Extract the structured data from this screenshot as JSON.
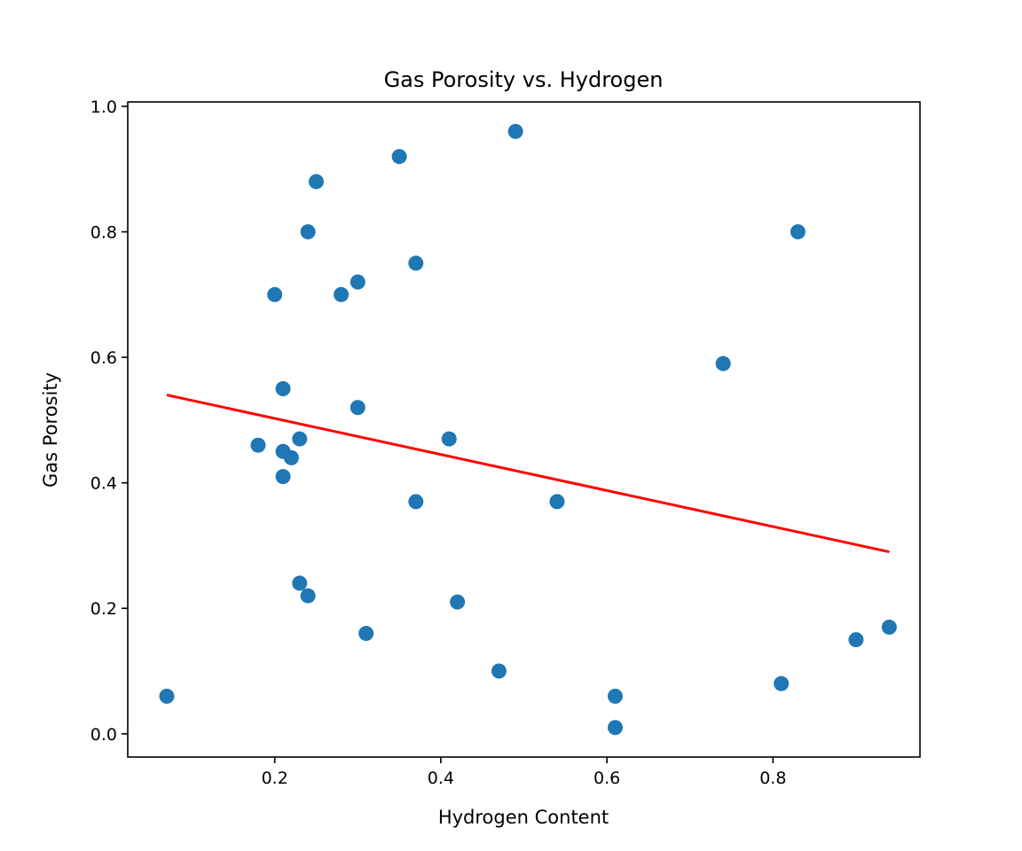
{
  "chart_data": {
    "type": "scatter",
    "title": "Gas Porosity vs. Hydrogen",
    "xlabel": "Hydrogen Content",
    "ylabel": "Gas Porosity",
    "xlim": [
      0.023,
      0.977
    ],
    "ylim": [
      -0.037,
      1.007
    ],
    "x_ticks": [
      0.2,
      0.4,
      0.6,
      0.8
    ],
    "x_tick_labels": [
      "0.2",
      "0.4",
      "0.6",
      "0.8"
    ],
    "y_ticks": [
      0.0,
      0.2,
      0.4,
      0.6,
      0.8,
      1.0
    ],
    "y_tick_labels": [
      "0.0",
      "0.2",
      "0.4",
      "0.6",
      "0.8",
      "1.0"
    ],
    "grid": false,
    "series": [
      {
        "type": "scatter",
        "color": "#1f77b4",
        "points": [
          {
            "x": 0.07,
            "y": 0.06
          },
          {
            "x": 0.18,
            "y": 0.46
          },
          {
            "x": 0.2,
            "y": 0.7
          },
          {
            "x": 0.21,
            "y": 0.55
          },
          {
            "x": 0.21,
            "y": 0.45
          },
          {
            "x": 0.21,
            "y": 0.41
          },
          {
            "x": 0.22,
            "y": 0.44
          },
          {
            "x": 0.23,
            "y": 0.47
          },
          {
            "x": 0.23,
            "y": 0.24
          },
          {
            "x": 0.24,
            "y": 0.8
          },
          {
            "x": 0.24,
            "y": 0.22
          },
          {
            "x": 0.25,
            "y": 0.88
          },
          {
            "x": 0.28,
            "y": 0.7
          },
          {
            "x": 0.3,
            "y": 0.72
          },
          {
            "x": 0.3,
            "y": 0.52
          },
          {
            "x": 0.31,
            "y": 0.16
          },
          {
            "x": 0.35,
            "y": 0.92
          },
          {
            "x": 0.37,
            "y": 0.75
          },
          {
            "x": 0.37,
            "y": 0.37
          },
          {
            "x": 0.41,
            "y": 0.47
          },
          {
            "x": 0.42,
            "y": 0.21
          },
          {
            "x": 0.47,
            "y": 0.1
          },
          {
            "x": 0.49,
            "y": 0.96
          },
          {
            "x": 0.54,
            "y": 0.37
          },
          {
            "x": 0.61,
            "y": 0.06
          },
          {
            "x": 0.61,
            "y": 0.01
          },
          {
            "x": 0.74,
            "y": 0.59
          },
          {
            "x": 0.81,
            "y": 0.08
          },
          {
            "x": 0.83,
            "y": 0.8
          },
          {
            "x": 0.9,
            "y": 0.15
          },
          {
            "x": 0.94,
            "y": 0.17
          }
        ]
      },
      {
        "type": "line",
        "color": "#ff0000",
        "points": [
          {
            "x": 0.07,
            "y": 0.54
          },
          {
            "x": 0.94,
            "y": 0.29
          }
        ]
      }
    ]
  }
}
